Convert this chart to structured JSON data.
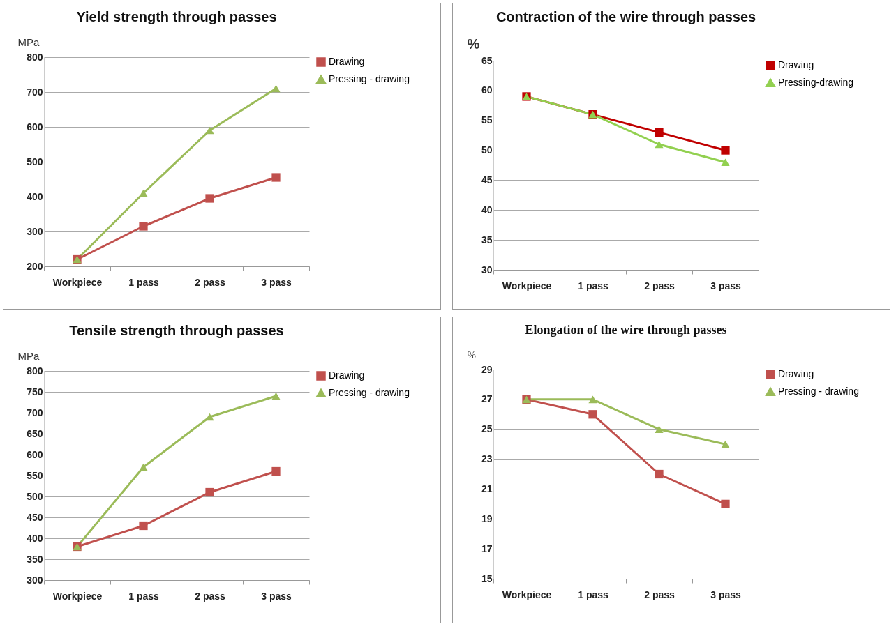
{
  "chart_data": [
    {
      "type": "line",
      "title": "Yield strength through passes",
      "ylabel": "MPa",
      "categories": [
        "Workpiece",
        "1 pass",
        "2 pass",
        "3 pass"
      ],
      "ylim": [
        200,
        800
      ],
      "yticks": [
        200,
        300,
        400,
        500,
        600,
        700,
        800
      ],
      "grid": "y",
      "legend": "right",
      "series": [
        {
          "name": "Drawing",
          "color": "#c0504d",
          "marker": "square",
          "values": [
            220,
            315,
            395,
            455
          ]
        },
        {
          "name": "Pressing - drawing",
          "color": "#9bbb59",
          "marker": "triangle",
          "values": [
            220,
            410,
            590,
            710
          ]
        }
      ]
    },
    {
      "type": "line",
      "title": "Contraction of the wire through passes",
      "ylabel": "%",
      "categories": [
        "Workpiece",
        "1 pass",
        "2 pass",
        "3 pass"
      ],
      "ylim": [
        30,
        65
      ],
      "yticks": [
        30,
        35,
        40,
        45,
        50,
        55,
        60,
        65
      ],
      "grid": "y",
      "legend": "right",
      "series": [
        {
          "name": "Drawing",
          "color": "#c00000",
          "marker": "square",
          "values": [
            59,
            56,
            53,
            50
          ]
        },
        {
          "name": "Pressing-drawing",
          "color": "#92d050",
          "marker": "triangle",
          "values": [
            59,
            56,
            51,
            48
          ]
        }
      ]
    },
    {
      "type": "line",
      "title": "Tensile strength through passes",
      "ylabel": "MPa",
      "categories": [
        "Workpiece",
        "1 pass",
        "2 pass",
        "3 pass"
      ],
      "ylim": [
        300,
        800
      ],
      "yticks": [
        300,
        350,
        400,
        450,
        500,
        550,
        600,
        650,
        700,
        750,
        800
      ],
      "grid": "y",
      "legend": "right",
      "series": [
        {
          "name": "Drawing",
          "color": "#c0504d",
          "marker": "square",
          "values": [
            380,
            430,
            510,
            560
          ]
        },
        {
          "name": "Pressing - drawing",
          "color": "#9bbb59",
          "marker": "triangle",
          "values": [
            380,
            570,
            690,
            740
          ]
        }
      ]
    },
    {
      "type": "line",
      "title": "Elongation of the wire through passes",
      "ylabel": "%",
      "categories": [
        "Workpiece",
        "1 pass",
        "2 pass",
        "3 pass"
      ],
      "ylim": [
        15,
        29
      ],
      "yticks": [
        15,
        17,
        19,
        21,
        23,
        25,
        27,
        29
      ],
      "grid": "y",
      "legend": "right",
      "series": [
        {
          "name": "Drawing",
          "color": "#c0504d",
          "marker": "square",
          "values": [
            27,
            26,
            22,
            20
          ]
        },
        {
          "name": "Pressing - drawing",
          "color": "#9bbb59",
          "marker": "triangle",
          "values": [
            27,
            27,
            25,
            24
          ]
        }
      ]
    }
  ]
}
